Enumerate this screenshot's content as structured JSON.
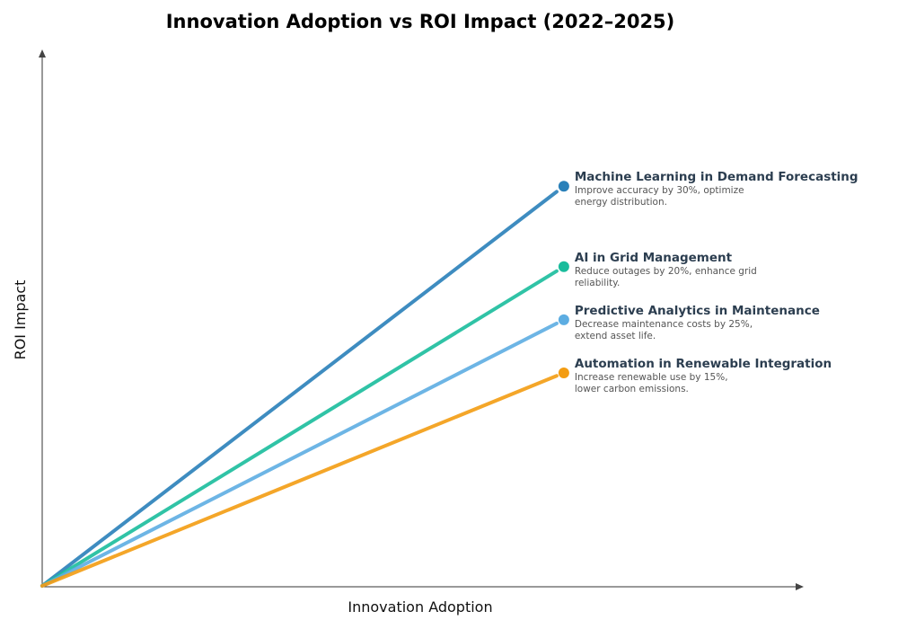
{
  "chart_data": {
    "type": "line",
    "title": "Innovation Adoption vs ROI Impact (2022–2025)",
    "xlabel": "Innovation Adoption",
    "ylabel": "ROI Impact",
    "xlim": [
      0,
      10
    ],
    "ylim": [
      0,
      10
    ],
    "grid": false,
    "ticks": false,
    "series": [
      {
        "name": "Machine Learning in Demand Forecasting",
        "description": [
          "Improve accuracy by 30%, optimize",
          "energy distribution."
        ],
        "color": "#2980b9",
        "x": [
          0,
          6.85
        ],
        "y": [
          0,
          7.45
        ]
      },
      {
        "name": "AI in Grid Management",
        "description": [
          "Reduce outages by 20%, enhance grid",
          "reliability."
        ],
        "color": "#1abc9c",
        "x": [
          0,
          6.85
        ],
        "y": [
          0,
          5.95
        ]
      },
      {
        "name": "Predictive Analytics in Maintenance",
        "description": [
          "Decrease maintenance costs by 25%,",
          "extend asset life."
        ],
        "color": "#5dade2",
        "x": [
          0,
          6.85
        ],
        "y": [
          0,
          4.96
        ]
      },
      {
        "name": "Automation in Renewable Integration",
        "description": [
          "Increase renewable use by 15%,",
          "lower carbon emissions."
        ],
        "color": "#f39c12",
        "x": [
          0,
          6.85
        ],
        "y": [
          0,
          3.97
        ]
      }
    ]
  }
}
